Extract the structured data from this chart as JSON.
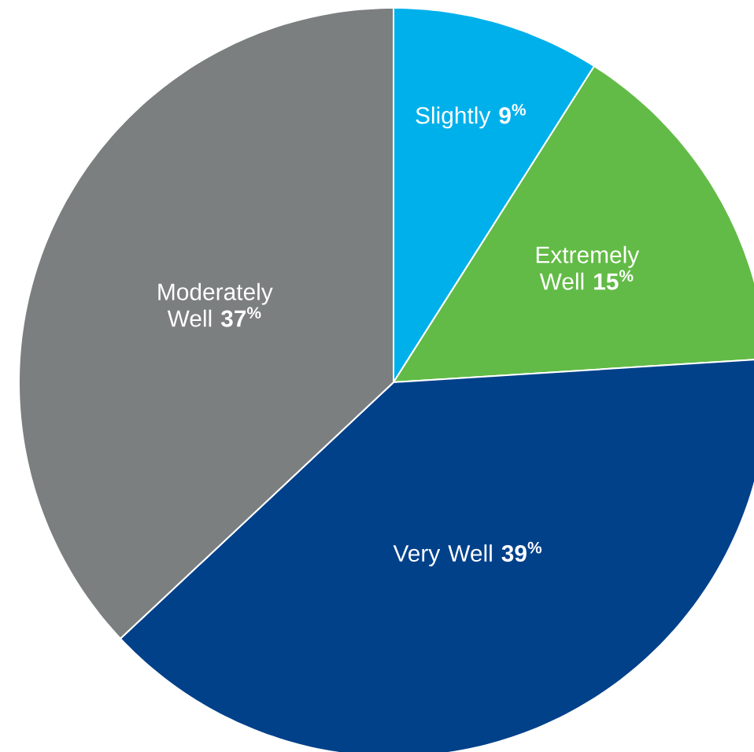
{
  "chart_data": {
    "type": "pie",
    "categories": [
      "Slightly",
      "Extremely Well",
      "Very Well",
      "Moderately Well"
    ],
    "values": [
      9,
      15,
      39,
      37
    ],
    "colors": [
      "#00b0eb",
      "#62bb46",
      "#00418a",
      "#7b7f7f"
    ],
    "value_labels": [
      "9$^{%}$",
      "15$^{%}$",
      "39$^{%}$",
      "37$^{%}$"
    ]
  }
}
